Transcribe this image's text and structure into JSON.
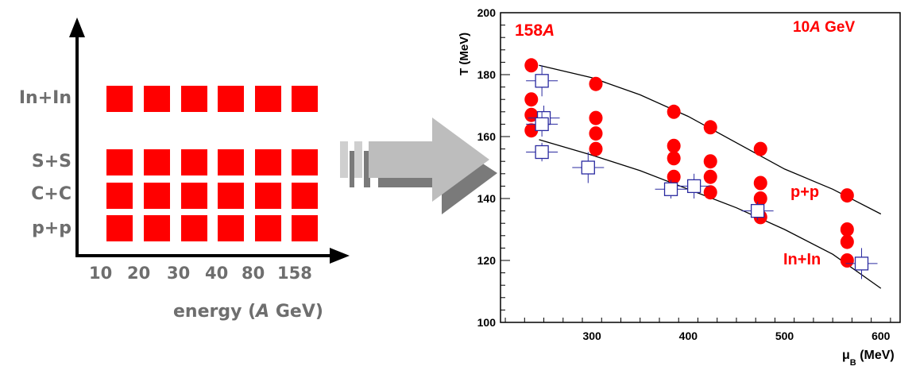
{
  "schematic": {
    "systems": [
      "In+In",
      "S+S",
      "C+C",
      "p+p"
    ],
    "energies": [
      "10",
      "20",
      "30",
      "40",
      "80",
      "158"
    ],
    "xaxis_title_prefix": "energy (",
    "xaxis_title_italic": "A",
    "xaxis_title_suffix": " GeV)",
    "square_color": "#ff0000",
    "axis_color": "#000000",
    "label_color": "#6e6e6e"
  },
  "arrow": {
    "color": "#bdbdbd",
    "shadow_color": "#7a7a7a"
  },
  "chart_data": {
    "type": "scatter",
    "xlabel_symbol": "μ",
    "xlabel_sub": "B",
    "xlabel_unit": " (MeV)",
    "ylabel": "T (MeV)",
    "xlim": [
      205,
      620
    ],
    "ylim": [
      100,
      200
    ],
    "xticks": [
      300,
      400,
      500,
      600
    ],
    "yticks": [
      100,
      120,
      140,
      160,
      180,
      200
    ],
    "annotations": {
      "left_top_prefix": "158",
      "left_top_italic": "A",
      "right_top_prefix": "10",
      "right_top_italic": "A",
      "right_top_suffix": " GeV",
      "pp_label": "p+p",
      "inin_label": "In+In",
      "color": "#ff0000"
    },
    "series": [
      {
        "marker": "filled-circle",
        "color": "#ff0000",
        "points": [
          [
            237,
            183
          ],
          [
            237,
            172
          ],
          [
            237,
            167
          ],
          [
            237,
            162
          ],
          [
            304,
            177
          ],
          [
            304,
            166
          ],
          [
            304,
            161
          ],
          [
            304,
            156
          ],
          [
            385,
            168
          ],
          [
            385,
            157
          ],
          [
            385,
            153
          ],
          [
            385,
            147
          ],
          [
            423,
            163
          ],
          [
            423,
            152
          ],
          [
            423,
            147
          ],
          [
            423,
            142
          ],
          [
            475,
            156
          ],
          [
            475,
            145
          ],
          [
            475,
            140
          ],
          [
            475,
            134
          ],
          [
            565,
            141
          ],
          [
            565,
            130
          ],
          [
            565,
            126
          ],
          [
            565,
            120
          ]
        ]
      },
      {
        "marker": "open-square",
        "color": "#2a2aa0",
        "points": [
          [
            248,
            178,
            5
          ],
          [
            250,
            166,
            4
          ],
          [
            248,
            164,
            4
          ],
          [
            248,
            155,
            3
          ],
          [
            296,
            150,
            5
          ],
          [
            382,
            143,
            3
          ],
          [
            406,
            144,
            4
          ],
          [
            472,
            136,
            3
          ],
          [
            580,
            119,
            5
          ]
        ]
      }
    ],
    "curves": [
      {
        "points": [
          [
            245,
            183
          ],
          [
            300,
            179
          ],
          [
            350,
            173.5
          ],
          [
            400,
            166.5
          ],
          [
            450,
            158
          ],
          [
            500,
            149.5
          ],
          [
            550,
            143
          ],
          [
            600,
            135
          ]
        ]
      },
      {
        "points": [
          [
            245,
            159
          ],
          [
            300,
            154
          ],
          [
            350,
            149
          ],
          [
            400,
            143
          ],
          [
            450,
            137
          ],
          [
            500,
            130
          ],
          [
            550,
            122
          ],
          [
            600,
            111
          ]
        ]
      }
    ]
  }
}
